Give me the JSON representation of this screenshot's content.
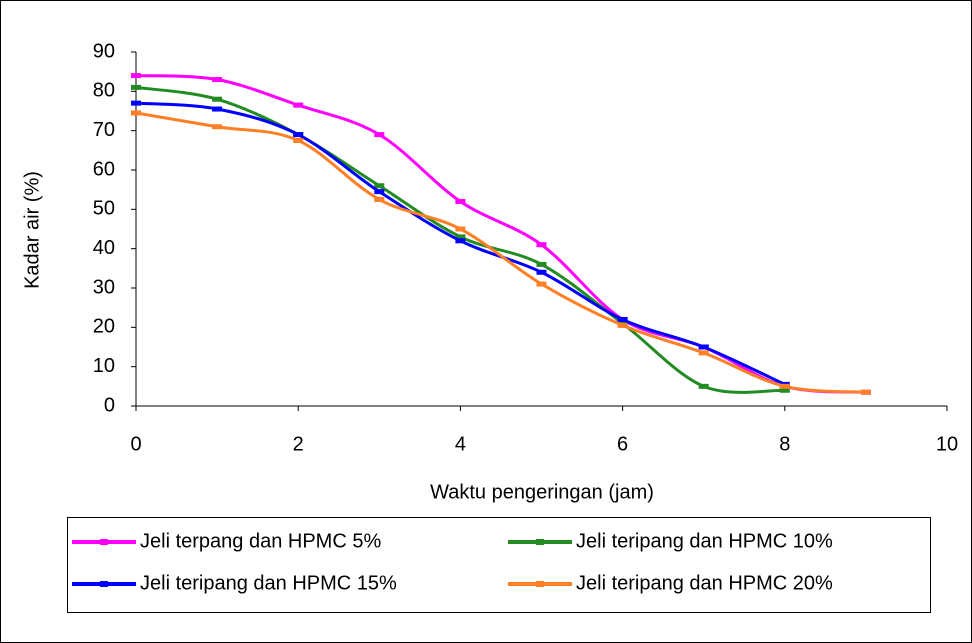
{
  "chart_data": {
    "type": "line",
    "x_label": "Waktu pengeringan (jam)",
    "y_label": "Kadar air (%)",
    "x": [
      0,
      1,
      2,
      3,
      4,
      5,
      6,
      7,
      8,
      9
    ],
    "series": [
      {
        "name": "Jeli terpang dan HPMC 5%",
        "color": "#ff00ff",
        "values": [
          84,
          83,
          76.5,
          69,
          52,
          41,
          22,
          15,
          5,
          3.5
        ]
      },
      {
        "name": "Jeli teripang dan HPMC 10%",
        "color": "#228b22",
        "values": [
          81,
          78,
          69,
          56,
          43,
          36,
          21,
          5,
          4,
          null
        ]
      },
      {
        "name": "Jeli teripang dan HPMC 15%",
        "color": "#0000ff",
        "values": [
          77,
          75.5,
          69,
          54.5,
          42,
          34,
          22,
          15,
          5.5,
          null
        ]
      },
      {
        "name": "Jeli teripang dan HPMC 20%",
        "color": "#ff7f27",
        "values": [
          74.5,
          71,
          67.5,
          52.5,
          45,
          31,
          20.5,
          13.5,
          5,
          3.5
        ]
      }
    ],
    "xlim": [
      0,
      10
    ],
    "xticks": [
      0,
      2,
      4,
      6,
      8,
      10
    ],
    "ylim": [
      0,
      90
    ],
    "yticks": [
      0,
      10,
      20,
      30,
      40,
      50,
      60,
      70,
      80,
      90
    ],
    "legend": "bottom"
  }
}
